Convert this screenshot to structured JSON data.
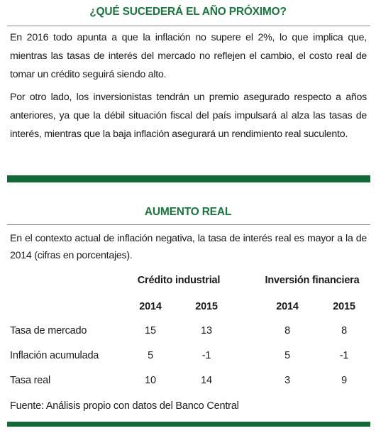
{
  "section1": {
    "title": "¿QUÉ SUCEDERÁ EL AÑO PRÓXIMO?",
    "paragraphs": [
      "En 2016 todo apunta a que la inflación no supere el 2%, lo que implica que, mientras las tasas de interés del mercado no reflejen el cambio, el costo real de tomar un crédito seguirá siendo alto.",
      "Por otro lado, los inversionistas tendrán un premio asegurado respecto a años anteriores, ya que la débil situación fiscal del país impulsará al alza las tasas de interés, mientras que la baja inflación asegurará un rendimiento real suculento."
    ]
  },
  "section2": {
    "title": "AUMENTO REAL",
    "intro": "En el contexto actual de inflación negativa, la tasa de interés real es mayor a la de 2014 (cifras en porcentajes).",
    "table": {
      "groups": [
        "Crédito industrial",
        "Inversión financiera"
      ],
      "years": [
        "2014",
        "2015",
        "2014",
        "2015"
      ],
      "rows": [
        [
          "Tasa de mercado",
          15,
          13,
          8,
          8
        ],
        [
          "Inflación acumulada",
          5,
          -1,
          5,
          -1
        ],
        [
          "Tasa real",
          10,
          14,
          3,
          9
        ]
      ]
    },
    "source": "Fuente: Análisis propio con datos del Banco Central"
  }
}
